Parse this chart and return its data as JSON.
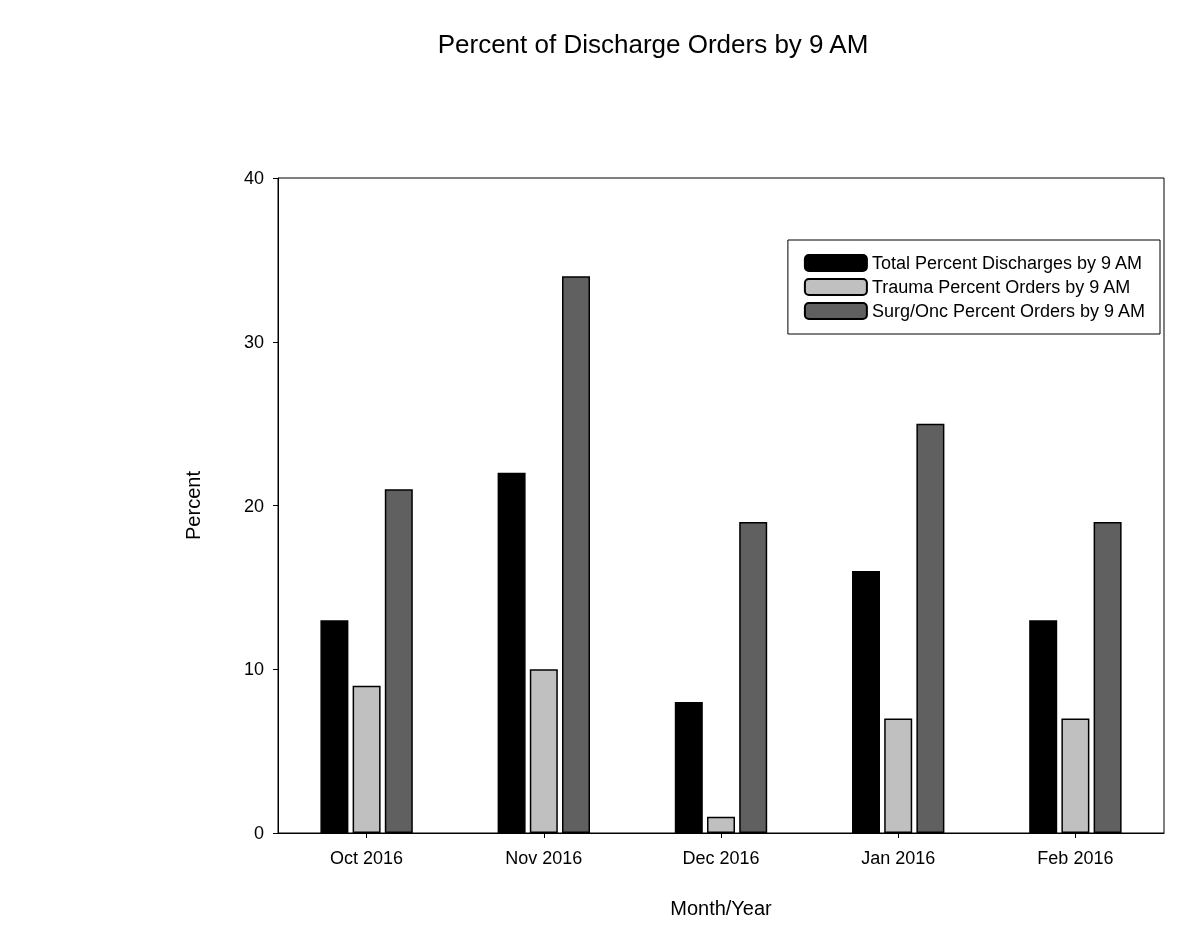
{
  "chart_data": {
    "type": "bar",
    "title": "Percent of Discharge Orders by 9 AM",
    "xlabel": "Month/Year",
    "ylabel": "Percent",
    "categories": [
      "Oct 2016",
      "Nov 2016",
      "Dec 2016",
      "Jan 2016",
      "Feb 2016"
    ],
    "series": [
      {
        "name": "Total Percent Discharges by 9 AM",
        "color": "#000000",
        "values": [
          13,
          22,
          8,
          16,
          13
        ]
      },
      {
        "name": "Trauma Percent Orders by 9 AM",
        "color": "#c0c0c0",
        "values": [
          9,
          10,
          1,
          7,
          7
        ]
      },
      {
        "name": "Surg/Onc Percent Orders by 9 AM",
        "color": "#606060",
        "values": [
          21,
          34,
          19,
          25,
          19
        ]
      }
    ],
    "ylim": [
      0,
      40
    ],
    "yticks": [
      0,
      10,
      20,
      30,
      40
    ],
    "grid": false,
    "legend": "top right"
  }
}
